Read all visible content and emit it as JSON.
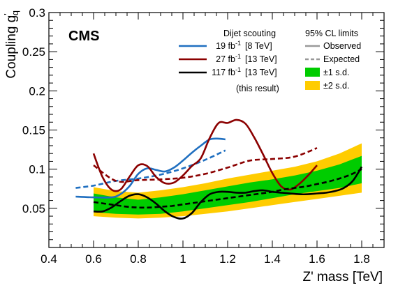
{
  "chart_data": {
    "type": "line",
    "experiment_label": "CMS",
    "xlabel": "Z' mass [TeV]",
    "ylabel": "Coupling g'q",
    "xlim": [
      0.4,
      1.9
    ],
    "ylim": [
      0.0,
      0.3
    ],
    "xticks": [
      0.4,
      0.6,
      0.8,
      1.0,
      1.2,
      1.4,
      1.6,
      1.8
    ],
    "xtick_labels": [
      "0.4",
      "0.6",
      "0.8",
      "1",
      "1.2",
      "1.4",
      "1.6",
      "1.8"
    ],
    "yticks": [
      0.05,
      0.1,
      0.15,
      0.2,
      0.25,
      0.3
    ],
    "ytick_labels": [
      "0.05",
      "0.1",
      "0.15",
      "0.2",
      "0.25",
      "0.3"
    ],
    "legend": {
      "left_title": "Dijet scouting",
      "right_title": "95% CL limits",
      "experiments": [
        {
          "label": "19 fb",
          "sup": "-1",
          "detail": "[8 TeV]",
          "color": "#1f6fc0"
        },
        {
          "label": "27 fb",
          "sup": "-1",
          "detail": "[13 TeV]",
          "color": "#8b0000"
        },
        {
          "label": "117 fb",
          "sup": "-1",
          "detail": "[13 TeV]",
          "color": "#000000"
        }
      ],
      "note": "(this result)",
      "styles": [
        {
          "label": "Observed",
          "kind": "solid",
          "color": "#999999"
        },
        {
          "label": "Expected",
          "kind": "dashed",
          "color": "#999999"
        },
        {
          "label": "±1 s.d.",
          "kind": "box",
          "color": "#00cc00"
        },
        {
          "label": "±2 s.d.",
          "kind": "box",
          "color": "#ffcc00"
        }
      ]
    },
    "bands": {
      "x": [
        0.6,
        0.7,
        0.8,
        0.9,
        1.0,
        1.1,
        1.2,
        1.3,
        1.4,
        1.5,
        1.6,
        1.7,
        1.8
      ],
      "two_sigma_low": [
        0.04,
        0.038,
        0.037,
        0.038,
        0.04,
        0.043,
        0.046,
        0.05,
        0.054,
        0.058,
        0.062,
        0.066,
        0.07
      ],
      "one_sigma_low": [
        0.045,
        0.043,
        0.042,
        0.043,
        0.046,
        0.05,
        0.054,
        0.058,
        0.063,
        0.068,
        0.072,
        0.076,
        0.082
      ],
      "one_sigma_high": [
        0.069,
        0.064,
        0.061,
        0.064,
        0.068,
        0.073,
        0.078,
        0.083,
        0.087,
        0.092,
        0.098,
        0.106,
        0.117
      ],
      "two_sigma_high": [
        0.077,
        0.072,
        0.07,
        0.073,
        0.077,
        0.082,
        0.088,
        0.093,
        0.098,
        0.103,
        0.11,
        0.12,
        0.133
      ],
      "one_sigma_color": "#00cc00",
      "two_sigma_color": "#ffcc00"
    },
    "series": [
      {
        "name": "19 fb-1 [8 TeV] observed",
        "style": "solid",
        "color": "#1f6fc0",
        "x": [
          0.52,
          0.6,
          0.68,
          0.72,
          0.76,
          0.8,
          0.84,
          0.88,
          0.92,
          0.96,
          1.0,
          1.04,
          1.08,
          1.12,
          1.16,
          1.19
        ],
        "y": [
          0.065,
          0.064,
          0.064,
          0.068,
          0.078,
          0.094,
          0.101,
          0.099,
          0.097,
          0.102,
          0.111,
          0.121,
          0.13,
          0.138,
          0.139,
          0.138
        ]
      },
      {
        "name": "19 fb-1 [8 TeV] expected",
        "style": "dashed",
        "color": "#1f6fc0",
        "x": [
          0.52,
          0.6,
          0.7,
          0.8,
          0.9,
          1.0,
          1.1,
          1.19
        ],
        "y": [
          0.076,
          0.079,
          0.085,
          0.088,
          0.093,
          0.101,
          0.112,
          0.124
        ]
      },
      {
        "name": "27 fb-1 [13 TeV] observed",
        "style": "solid",
        "color": "#8b0000",
        "x": [
          0.6,
          0.64,
          0.68,
          0.72,
          0.76,
          0.8,
          0.84,
          0.88,
          0.92,
          0.96,
          1.0,
          1.04,
          1.08,
          1.12,
          1.16,
          1.2,
          1.24,
          1.28,
          1.32,
          1.36,
          1.4,
          1.44,
          1.48,
          1.52,
          1.56,
          1.6
        ],
        "y": [
          0.12,
          0.09,
          0.074,
          0.074,
          0.09,
          0.105,
          0.104,
          0.09,
          0.082,
          0.083,
          0.092,
          0.104,
          0.114,
          0.14,
          0.159,
          0.159,
          0.163,
          0.158,
          0.14,
          0.118,
          0.095,
          0.078,
          0.074,
          0.081,
          0.092,
          0.105
        ]
      },
      {
        "name": "27 fb-1 [13 TeV] expected",
        "style": "dashed",
        "color": "#8b0000",
        "x": [
          0.6,
          0.7,
          0.8,
          0.9,
          1.0,
          1.1,
          1.2,
          1.3,
          1.4,
          1.5,
          1.6
        ],
        "y": [
          0.105,
          0.085,
          0.086,
          0.087,
          0.089,
          0.094,
          0.102,
          0.111,
          0.113,
          0.116,
          0.127
        ]
      },
      {
        "name": "117 fb-1 [13 TeV] observed",
        "style": "solid",
        "color": "#000000",
        "x": [
          0.6,
          0.64,
          0.68,
          0.72,
          0.76,
          0.8,
          0.84,
          0.88,
          0.92,
          0.96,
          1.0,
          1.04,
          1.08,
          1.12,
          1.16,
          1.2,
          1.24,
          1.28,
          1.32,
          1.36,
          1.4,
          1.44,
          1.48,
          1.52,
          1.56,
          1.6,
          1.64,
          1.68,
          1.72,
          1.76,
          1.8
        ],
        "y": [
          0.046,
          0.046,
          0.051,
          0.059,
          0.066,
          0.068,
          0.064,
          0.056,
          0.046,
          0.039,
          0.037,
          0.044,
          0.058,
          0.068,
          0.071,
          0.071,
          0.07,
          0.07,
          0.072,
          0.073,
          0.071,
          0.07,
          0.069,
          0.068,
          0.068,
          0.069,
          0.07,
          0.072,
          0.076,
          0.085,
          0.103
        ]
      },
      {
        "name": "117 fb-1 [13 TeV] expected",
        "style": "dashed",
        "color": "#000000",
        "x": [
          0.6,
          0.65,
          0.7,
          0.75,
          0.8,
          0.85,
          0.9,
          0.95,
          1.0,
          1.05,
          1.1,
          1.15,
          1.2,
          1.25,
          1.3,
          1.35,
          1.4,
          1.45,
          1.5,
          1.55,
          1.6,
          1.65,
          1.7,
          1.75,
          1.8
        ],
        "y": [
          0.058,
          0.056,
          0.054,
          0.052,
          0.051,
          0.051,
          0.052,
          0.053,
          0.055,
          0.057,
          0.059,
          0.061,
          0.063,
          0.065,
          0.067,
          0.069,
          0.071,
          0.074,
          0.076,
          0.078,
          0.081,
          0.084,
          0.088,
          0.093,
          0.1
        ]
      }
    ]
  }
}
